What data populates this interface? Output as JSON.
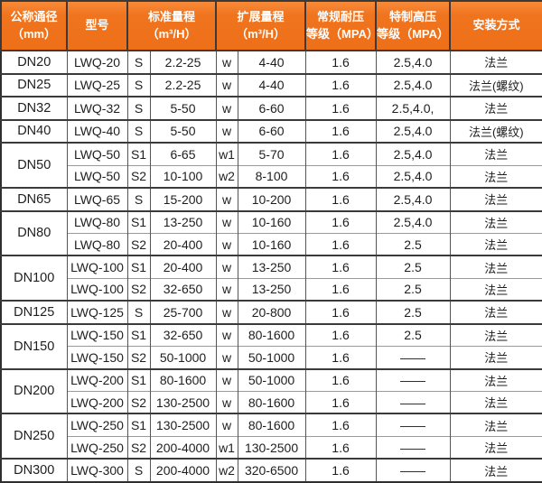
{
  "accent_color": "#f0741e",
  "header_text_color": "#ffffff",
  "body_text_color": "#1e1e1e",
  "header": {
    "dn": {
      "line1": "公称通径",
      "line2": "（mm）"
    },
    "model": "型号",
    "std_range": {
      "line1": "标准量程",
      "line2": "（m³/H）"
    },
    "ext_range": {
      "line1": "扩展量程",
      "line2": "（m³/H）"
    },
    "regular_pressure": {
      "line1": "常规耐压",
      "line2": "等级（MPA）"
    },
    "high_pressure": {
      "line1": "特制高压",
      "line2": "等级（MPA）"
    },
    "install": "安装方式"
  },
  "groups": [
    {
      "dn": "DN20",
      "rows": [
        {
          "model": "LWQ-20",
          "s": "S",
          "std": "2.2-25",
          "w": "w",
          "ext": "4-40",
          "regular": "1.6",
          "high": "2.5,4.0",
          "install": "法兰"
        }
      ]
    },
    {
      "dn": "DN25",
      "rows": [
        {
          "model": "LWQ-25",
          "s": "S",
          "std": "2.2-25",
          "w": "w",
          "ext": "4-40",
          "regular": "1.6",
          "high": "2.5,4.0",
          "install": "法兰(螺纹)"
        }
      ]
    },
    {
      "dn": "DN32",
      "rows": [
        {
          "model": "LWQ-32",
          "s": "S",
          "std": "5-50",
          "w": "w",
          "ext": "6-60",
          "regular": "1.6",
          "high": "2.5,4.0,",
          "install": "法兰"
        }
      ]
    },
    {
      "dn": "DN40",
      "rows": [
        {
          "model": "LWQ-40",
          "s": "S",
          "std": "5-50",
          "w": "w",
          "ext": "6-60",
          "regular": "1.6",
          "high": "2.5,4.0",
          "install": "法兰(螺纹)"
        }
      ]
    },
    {
      "dn": "DN50",
      "rows": [
        {
          "model": "LWQ-50",
          "s": "S1",
          "std": "6-65",
          "w": "w1",
          "ext": "5-70",
          "regular": "1.6",
          "high": "2.5,4.0",
          "install": "法兰"
        },
        {
          "model": "LWQ-50",
          "s": "S2",
          "std": "10-100",
          "w": "w2",
          "ext": "8-100",
          "regular": "1.6",
          "high": "2.5,4.0",
          "install": "法兰"
        }
      ]
    },
    {
      "dn": "DN65",
      "rows": [
        {
          "model": "LWQ-65",
          "s": "S",
          "std": "15-200",
          "w": "w",
          "ext": "10-200",
          "regular": "1.6",
          "high": "2.5,4.0",
          "install": "法兰"
        }
      ]
    },
    {
      "dn": "DN80",
      "rows": [
        {
          "model": "LWQ-80",
          "s": "S1",
          "std": "13-250",
          "w": "w",
          "ext": "10-160",
          "regular": "1.6",
          "high": "2.5,4.0",
          "install": "法兰"
        },
        {
          "model": "LWQ-80",
          "s": "S2",
          "std": "20-400",
          "w": "w",
          "ext": "10-160",
          "regular": "1.6",
          "high": "2.5",
          "install": "法兰"
        }
      ]
    },
    {
      "dn": "DN100",
      "rows": [
        {
          "model": "LWQ-100",
          "s": "S1",
          "std": "20-400",
          "w": "w",
          "ext": "13-250",
          "regular": "1.6",
          "high": "2.5",
          "install": "法兰"
        },
        {
          "model": "LWQ-100",
          "s": "S2",
          "std": "32-650",
          "w": "w",
          "ext": "13-250",
          "regular": "1.6",
          "high": "2.5",
          "install": "法兰"
        }
      ]
    },
    {
      "dn": "DN125",
      "rows": [
        {
          "model": "LWQ-125",
          "s": "S",
          "std": "25-700",
          "w": "w",
          "ext": "20-800",
          "regular": "1.6",
          "high": "2.5",
          "install": "法兰"
        }
      ]
    },
    {
      "dn": "DN150",
      "rows": [
        {
          "model": "LWQ-150",
          "s": "S1",
          "std": "32-650",
          "w": "w",
          "ext": "80-1600",
          "regular": "1.6",
          "high": "2.5",
          "install": "法兰"
        },
        {
          "model": "LWQ-150",
          "s": "S2",
          "std": "50-1000",
          "w": "w",
          "ext": "50-1000",
          "regular": "1.6",
          "high": "——",
          "install": "法兰"
        }
      ]
    },
    {
      "dn": "DN200",
      "rows": [
        {
          "model": "LWQ-200",
          "s": "S1",
          "std": "80-1600",
          "w": "w",
          "ext": "50-1000",
          "regular": "1.6",
          "high": "——",
          "install": "法兰"
        },
        {
          "model": "LWQ-200",
          "s": "S2",
          "std": "130-2500",
          "w": "w",
          "ext": "80-1600",
          "regular": "1.6",
          "high": "——",
          "install": "法兰"
        }
      ]
    },
    {
      "dn": "DN250",
      "rows": [
        {
          "model": "LWQ-250",
          "s": "S1",
          "std": "130-2500",
          "w": "w",
          "ext": "80-1600",
          "regular": "1.6",
          "high": "——",
          "install": "法兰"
        },
        {
          "model": "LWQ-250",
          "s": "S2",
          "std": "200-4000",
          "w": "w1",
          "ext": "130-2500",
          "regular": "1.6",
          "high": "——",
          "install": "法兰"
        }
      ]
    },
    {
      "dn": "DN300",
      "rows": [
        {
          "model": "LWQ-300",
          "s": "S",
          "std": "200-4000",
          "w": "w2",
          "ext": "320-6500",
          "regular": "1.6",
          "high": "——",
          "install": "法兰"
        }
      ]
    }
  ]
}
